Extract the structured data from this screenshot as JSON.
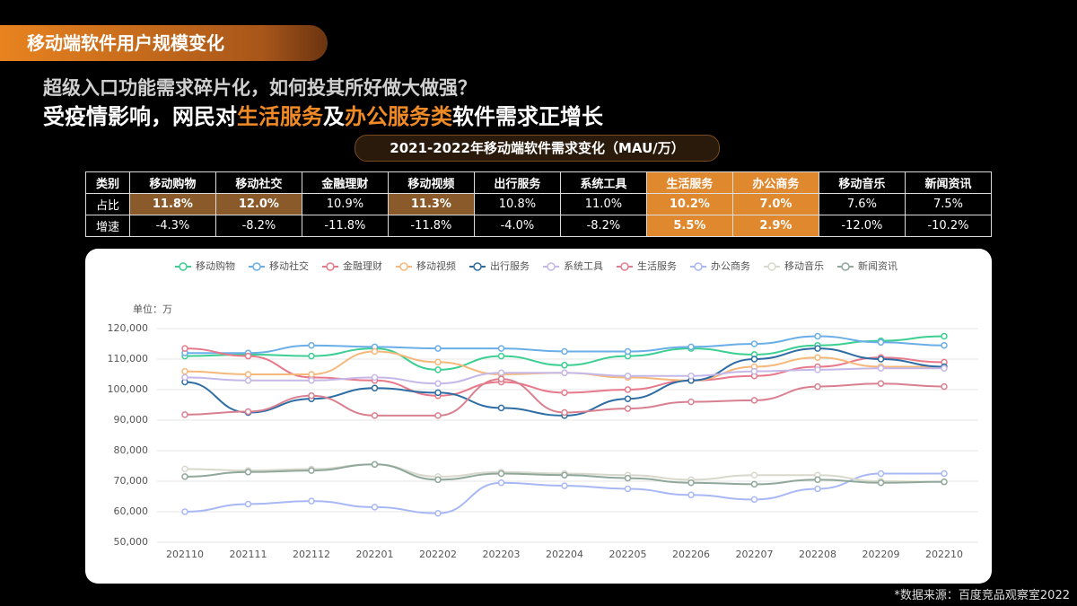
{
  "header": {
    "tag": "移动端软件用户规模变化",
    "subtitle": "超级入口功能需求碎片化，如何投其所好做大做强？",
    "headline": [
      {
        "text": "受疫情影响，网民对",
        "accent": false
      },
      {
        "text": "生活服务",
        "accent": true
      },
      {
        "text": "及",
        "accent": false
      },
      {
        "text": "办公服务类",
        "accent": true
      },
      {
        "text": "软件需求正增长",
        "accent": false
      }
    ]
  },
  "table": {
    "title": "2021-2022年移动端软件需求变化（MAU/万）",
    "header": [
      "类别",
      "移动购物",
      "移动社交",
      "金融理财",
      "移动视频",
      "出行服务",
      "系统工具",
      "生活服务",
      "办公商务",
      "移动音乐",
      "新闻资讯"
    ],
    "rows": [
      [
        "占比",
        "11.8%",
        "12.0%",
        "10.9%",
        "11.3%",
        "10.8%",
        "11.0%",
        "10.2%",
        "7.0%",
        "7.6%",
        "7.5%"
      ],
      [
        "增速",
        "-4.3%",
        "-8.2%",
        "-11.8%",
        "-11.8%",
        "-4.0%",
        "-8.2%",
        "5.5%",
        "2.9%",
        "-12.0%",
        "-10.2%"
      ]
    ]
  },
  "chart_data": {
    "type": "line",
    "y_label": "单位：万",
    "categories": [
      "202110",
      "202111",
      "202112",
      "202201",
      "202202",
      "202203",
      "202204",
      "202205",
      "202206",
      "202207",
      "202208",
      "202209",
      "202210"
    ],
    "ylim": [
      50000,
      120000
    ],
    "yticks": [
      {
        "value": 50000,
        "label": "50,000"
      },
      {
        "value": 60000,
        "label": "60,000"
      },
      {
        "value": 70000,
        "label": "70,000"
      },
      {
        "value": 80000,
        "label": "80,000"
      },
      {
        "value": 90000,
        "label": "90,000"
      },
      {
        "value": 100000,
        "label": "100,000"
      },
      {
        "value": 110000,
        "label": "110,000"
      },
      {
        "value": 120000,
        "label": "120,000"
      }
    ],
    "grid": true,
    "series": [
      {
        "name": "移动购物",
        "color": "#3ccf91",
        "values": [
          111000,
          111500,
          111000,
          113500,
          106500,
          111000,
          108000,
          111000,
          113500,
          111500,
          114500,
          116000,
          117500
        ]
      },
      {
        "name": "移动社交",
        "color": "#6aaee8",
        "values": [
          112000,
          112000,
          114500,
          114000,
          113500,
          113500,
          112500,
          112500,
          114000,
          115000,
          117500,
          115500,
          114500
        ]
      },
      {
        "name": "金融理财",
        "color": "#e8798a",
        "values": [
          113500,
          111000,
          104000,
          103000,
          98000,
          102500,
          99000,
          100000,
          103000,
          104500,
          107500,
          110500,
          109000
        ]
      },
      {
        "name": "移动视频",
        "color": "#f5b87a",
        "values": [
          106000,
          105000,
          105000,
          112500,
          109000,
          105000,
          105500,
          104000,
          103000,
          107500,
          110500,
          107500,
          107500
        ]
      },
      {
        "name": "出行服务",
        "color": "#2e6da4",
        "values": [
          102500,
          92500,
          97000,
          100500,
          99000,
          94000,
          91500,
          97000,
          103000,
          110000,
          113500,
          110000,
          107500
        ]
      },
      {
        "name": "系统工具",
        "color": "#c5b8e8",
        "values": [
          104000,
          103000,
          103000,
          104000,
          102000,
          105500,
          105500,
          104500,
          104500,
          106000,
          106500,
          107000,
          107000
        ]
      },
      {
        "name": "生活服务",
        "color": "#d98090",
        "values": [
          91800,
          92800,
          98000,
          91500,
          91500,
          103500,
          92500,
          93800,
          96000,
          96500,
          101000,
          102000,
          101000
        ]
      },
      {
        "name": "办公商务",
        "color": "#a8b8f5",
        "values": [
          60000,
          62500,
          63500,
          61500,
          59500,
          69500,
          68500,
          67500,
          65500,
          64000,
          67500,
          72500,
          72500
        ]
      },
      {
        "name": "移动音乐",
        "color": "#d8d8cc",
        "values": [
          74000,
          73500,
          74000,
          75500,
          71500,
          73000,
          72500,
          72000,
          70500,
          72000,
          72000,
          70000,
          69800
        ]
      },
      {
        "name": "新闻资讯",
        "color": "#8fa89a",
        "values": [
          71500,
          73000,
          73500,
          75500,
          70500,
          72500,
          72000,
          71000,
          69500,
          69000,
          70500,
          69500,
          69800
        ]
      }
    ]
  },
  "footer": "*数据来源：百度竞品观察室2022"
}
